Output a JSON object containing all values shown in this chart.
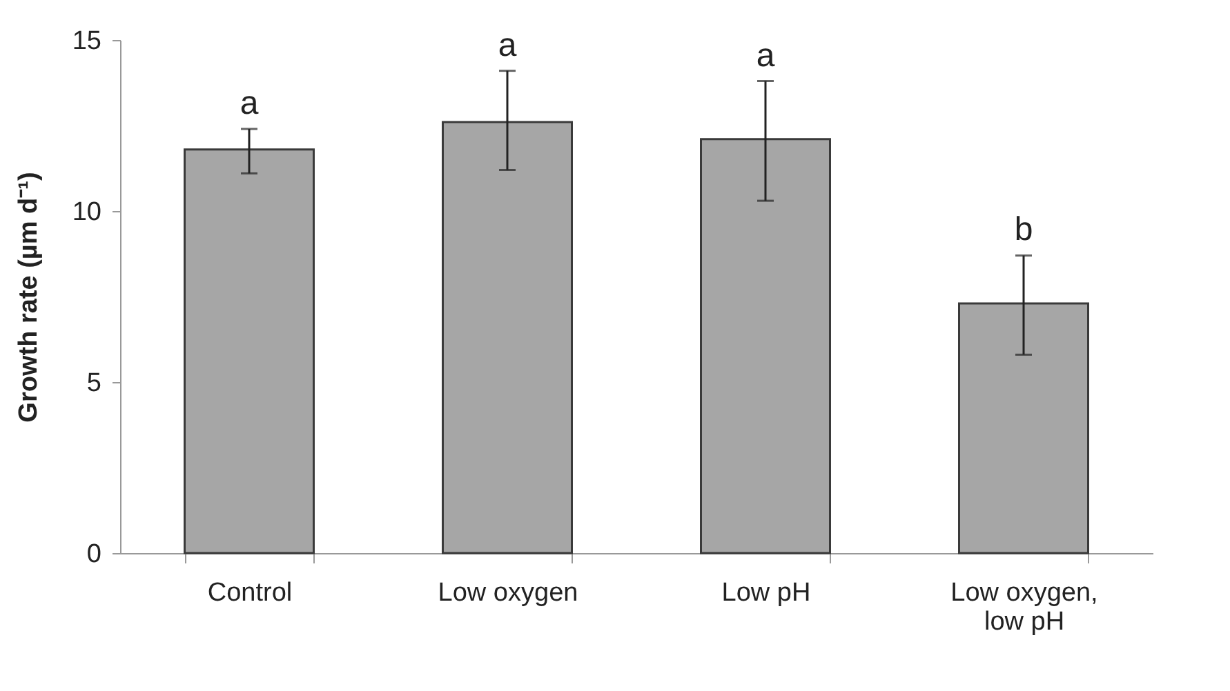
{
  "chart_data": {
    "type": "bar",
    "ylabel": "Growth rate (µm d⁻¹)",
    "categories": [
      "Control",
      "Low oxygen",
      "Low pH",
      "Low oxygen, low pH"
    ],
    "values": [
      11.8,
      12.6,
      12.1,
      7.3
    ],
    "errors": [
      [
        11.1,
        12.4
      ],
      [
        11.2,
        14.1
      ],
      [
        10.3,
        13.8
      ],
      [
        5.8,
        8.7
      ]
    ],
    "color": "#a6a6a6",
    "ylim": [
      0,
      15
    ],
    "yticks": [
      0,
      5,
      10,
      15
    ],
    "grid": false,
    "annotations": [
      "a",
      "a",
      "a",
      "b"
    ]
  }
}
